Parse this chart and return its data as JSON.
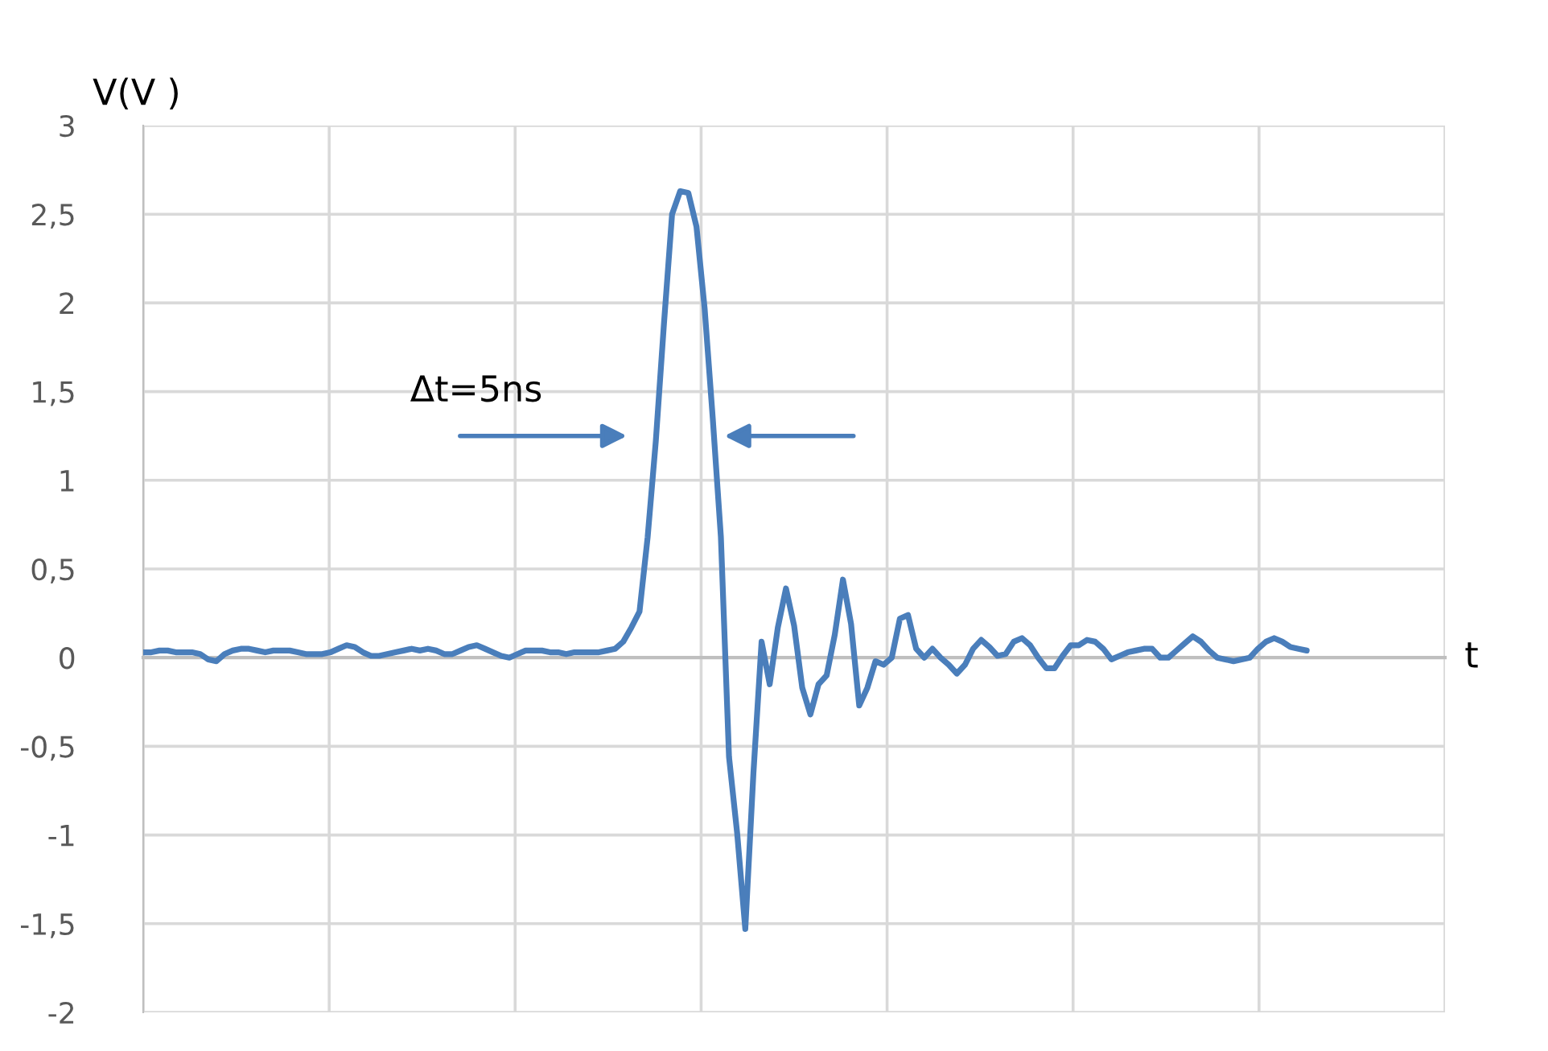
{
  "chart_data": {
    "type": "line",
    "xlabel": "t",
    "ylabel": "V(V )",
    "annotations": [
      "Δt=5ns"
    ],
    "categories": [
      null,
      null,
      null,
      null,
      null,
      null,
      null,
      null,
      null,
      null,
      null,
      null,
      null,
      null,
      null,
      null,
      null,
      null,
      null,
      null,
      null,
      null,
      null,
      null,
      null,
      null,
      null,
      null,
      null,
      null,
      null,
      null,
      null,
      null,
      null,
      null,
      null,
      null,
      null,
      null,
      null,
      null,
      null,
      null,
      null,
      null,
      null,
      null,
      null,
      null,
      null,
      null,
      null,
      null,
      null,
      null,
      null,
      null,
      null,
      null,
      null,
      null,
      null,
      null,
      null,
      null,
      null,
      null,
      null,
      null,
      null,
      null,
      null,
      null,
      null,
      null,
      null,
      null,
      null,
      null,
      null,
      null,
      null,
      null,
      null,
      null,
      null,
      null,
      null,
      null,
      null,
      null,
      null,
      null,
      null,
      null,
      null,
      null,
      null,
      null,
      null,
      null,
      null,
      null,
      null,
      null,
      null,
      null,
      null,
      null,
      null,
      null,
      null,
      null,
      null,
      null,
      null,
      null,
      null,
      null,
      null,
      null,
      null,
      null,
      null,
      null,
      null,
      null,
      null,
      null,
      null,
      null,
      null,
      null,
      null,
      null,
      null,
      null,
      null,
      null,
      null,
      null,
      null,
      null,
      null,
      null,
      null,
      null,
      null,
      null,
      null,
      null,
      null,
      null,
      null,
      null,
      null,
      null,
      null,
      null,
      null
    ],
    "series": [
      {
        "color": "#4a7ebb",
        "values": [
          0.03,
          0.03,
          0.04,
          0.04,
          0.03,
          0.03,
          0.03,
          0.02,
          -0.01,
          -0.02,
          0.02,
          0.04,
          0.05,
          0.05,
          0.04,
          0.03,
          0.04,
          0.04,
          0.04,
          0.03,
          0.02,
          0.02,
          0.02,
          0.03,
          0.05,
          0.07,
          0.06,
          0.03,
          0.01,
          0.01,
          0.02,
          0.03,
          0.04,
          0.05,
          0.04,
          0.05,
          0.04,
          0.02,
          0.02,
          0.04,
          0.06,
          0.07,
          0.05,
          0.03,
          0.01,
          0.0,
          0.02,
          0.04,
          0.04,
          0.04,
          0.03,
          0.03,
          0.02,
          0.03,
          0.03,
          0.03,
          0.03,
          0.04,
          0.05,
          0.09,
          0.17,
          0.26,
          0.68,
          1.22,
          1.88,
          2.5,
          2.63,
          2.62,
          2.43,
          1.97,
          1.35,
          0.68,
          -0.56,
          -0.99,
          -1.53,
          -0.65,
          0.09,
          -0.15,
          0.17,
          0.39,
          0.18,
          -0.17,
          -0.32,
          -0.15,
          -0.1,
          0.13,
          0.44,
          0.19,
          -0.27,
          -0.17,
          -0.02,
          -0.04,
          0.0,
          0.22,
          0.24,
          0.05,
          0.0,
          0.05,
          0.0,
          -0.04,
          -0.09,
          -0.04,
          0.05,
          0.1,
          0.06,
          0.01,
          0.02,
          0.09,
          0.11,
          0.07,
          0.0,
          -0.06,
          -0.06,
          0.01,
          0.07,
          0.07,
          0.1,
          0.09,
          0.05,
          -0.01,
          0.01,
          0.03,
          0.04,
          0.05,
          0.05,
          0.0,
          0.0,
          0.04,
          0.08,
          0.12,
          0.09,
          0.04,
          0.0,
          -0.01,
          -0.02,
          -0.01,
          0.0,
          0.05,
          0.09,
          0.11,
          0.09,
          0.06,
          0.05,
          0.04,
          null,
          null,
          null,
          null,
          null,
          null,
          null,
          null,
          null,
          null,
          null,
          null,
          null,
          null,
          null,
          null,
          null
        ]
      }
    ],
    "ylim": [
      -2,
      3
    ],
    "yticks": [
      {
        "value": -2,
        "label": "-2"
      },
      {
        "value": -1.5,
        "label": "-1,5"
      },
      {
        "value": -1,
        "label": "-1"
      },
      {
        "value": -0.5,
        "label": "-0,5"
      },
      {
        "value": 0,
        "label": "0"
      },
      {
        "value": 0.5,
        "label": "0,5"
      },
      {
        "value": 1,
        "label": "1"
      },
      {
        "value": 1.5,
        "label": "1,5"
      },
      {
        "value": 2,
        "label": "2"
      },
      {
        "value": 2.5,
        "label": "2,5"
      },
      {
        "value": 3,
        "label": "3"
      }
    ],
    "tick_labels": "y",
    "grid": true,
    "marker": "none",
    "line_style": "solid",
    "legend": false
  }
}
